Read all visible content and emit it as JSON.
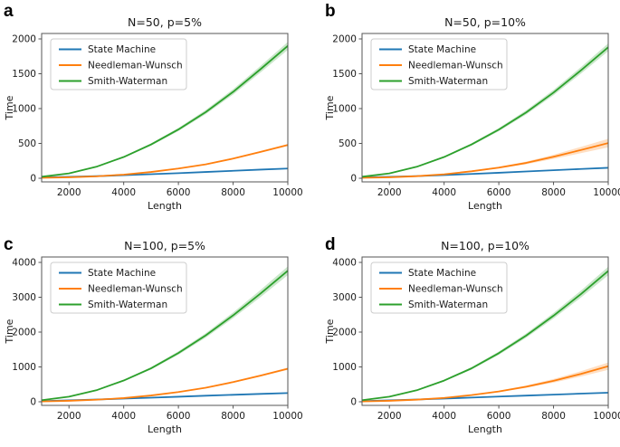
{
  "figure": {
    "background": "#ffffff",
    "ylabel": "Time",
    "xlabel": "Length",
    "legend_labels": [
      "State Machine",
      "Needleman-Wunsch",
      "Smith-Waterman"
    ]
  },
  "colors": {
    "state_machine": "#1f77b4",
    "needleman_wunsch": "#ff7f0e",
    "smith_waterman": "#2ca02c",
    "axis": "#555555",
    "text": "#1a1a1a",
    "legend_border": "#cccccc"
  },
  "chart_data": [
    {
      "type": "line",
      "letter": "a",
      "title": "N=50, p=5%",
      "xlabel": "Length",
      "ylabel": "Time",
      "x": [
        1000,
        2000,
        3000,
        4000,
        5000,
        6000,
        7000,
        8000,
        9000,
        10000
      ],
      "xlim": [
        1000,
        10000
      ],
      "ylim": [
        -52,
        2078
      ],
      "xticks": [
        2000,
        4000,
        6000,
        8000,
        10000
      ],
      "yticks": [
        0,
        500,
        1000,
        1500,
        2000
      ],
      "grid": false,
      "legend_position": "upper left",
      "series": [
        {
          "name": "State Machine",
          "color_key": "state_machine",
          "values": [
            12,
            20,
            30,
            44,
            58,
            73,
            90,
            107,
            124,
            140
          ],
          "band": [
            2,
            2,
            3,
            3,
            4,
            4,
            5,
            5,
            6,
            6
          ]
        },
        {
          "name": "Needleman-Wunsch",
          "color_key": "needleman_wunsch",
          "values": [
            6,
            14,
            28,
            52,
            90,
            140,
            200,
            282,
            378,
            478
          ],
          "band": [
            2,
            2,
            3,
            4,
            5,
            6,
            8,
            10,
            12,
            15
          ]
        },
        {
          "name": "Smith-Waterman",
          "color_key": "smith_waterman",
          "values": [
            22,
            70,
            165,
            305,
            485,
            700,
            950,
            1240,
            1565,
            1900
          ],
          "band": [
            3,
            5,
            8,
            12,
            17,
            23,
            30,
            38,
            47,
            57
          ]
        }
      ]
    },
    {
      "type": "line",
      "letter": "b",
      "title": "N=50, p=10%",
      "xlabel": "Length",
      "ylabel": "Time",
      "x": [
        1000,
        2000,
        3000,
        4000,
        5000,
        6000,
        7000,
        8000,
        9000,
        10000
      ],
      "xlim": [
        1000,
        10000
      ],
      "ylim": [
        -52,
        2078
      ],
      "xticks": [
        2000,
        4000,
        6000,
        8000,
        10000
      ],
      "yticks": [
        0,
        500,
        1000,
        1500,
        2000
      ],
      "grid": false,
      "legend_position": "upper left",
      "series": [
        {
          "name": "State Machine",
          "color_key": "state_machine",
          "values": [
            12,
            20,
            31,
            46,
            62,
            79,
            97,
            115,
            133,
            150
          ],
          "band": [
            2,
            3,
            3,
            4,
            4,
            5,
            6,
            7,
            8,
            9
          ]
        },
        {
          "name": "Needleman-Wunsch",
          "color_key": "needleman_wunsch",
          "values": [
            6,
            14,
            30,
            57,
            100,
            152,
            220,
            308,
            405,
            505
          ],
          "band": [
            2,
            3,
            4,
            6,
            9,
            13,
            19,
            30,
            45,
            62
          ]
        },
        {
          "name": "Smith-Waterman",
          "color_key": "smith_waterman",
          "values": [
            22,
            70,
            165,
            305,
            485,
            698,
            945,
            1230,
            1548,
            1880
          ],
          "band": [
            3,
            5,
            8,
            12,
            17,
            23,
            30,
            38,
            46,
            56
          ]
        }
      ]
    },
    {
      "type": "line",
      "letter": "c",
      "title": "N=100, p=5%",
      "xlabel": "Length",
      "ylabel": "Time",
      "x": [
        1000,
        2000,
        3000,
        4000,
        5000,
        6000,
        7000,
        8000,
        9000,
        10000
      ],
      "xlim": [
        1000,
        10000
      ],
      "ylim": [
        -104,
        4156
      ],
      "xticks": [
        2000,
        4000,
        6000,
        8000,
        10000
      ],
      "yticks": [
        0,
        1000,
        2000,
        3000,
        4000
      ],
      "grid": false,
      "legend_position": "upper left",
      "series": [
        {
          "name": "State Machine",
          "color_key": "state_machine",
          "values": [
            20,
            40,
            64,
            90,
            117,
            145,
            173,
            200,
            226,
            250
          ],
          "band": [
            3,
            3,
            4,
            4,
            5,
            5,
            6,
            6,
            7,
            8
          ]
        },
        {
          "name": "Needleman-Wunsch",
          "color_key": "needleman_wunsch",
          "values": [
            10,
            28,
            58,
            105,
            180,
            278,
            403,
            565,
            750,
            948
          ],
          "band": [
            3,
            4,
            5,
            7,
            9,
            12,
            16,
            21,
            27,
            34
          ]
        },
        {
          "name": "Smith-Waterman",
          "color_key": "smith_waterman",
          "values": [
            45,
            145,
            330,
            610,
            960,
            1400,
            1905,
            2480,
            3105,
            3760
          ],
          "band": [
            5,
            9,
            15,
            24,
            35,
            48,
            64,
            82,
            102,
            125
          ]
        }
      ]
    },
    {
      "type": "line",
      "letter": "d",
      "title": "N=100, p=10%",
      "xlabel": "Length",
      "ylabel": "Time",
      "x": [
        1000,
        2000,
        3000,
        4000,
        5000,
        6000,
        7000,
        8000,
        9000,
        10000
      ],
      "xlim": [
        1000,
        10000
      ],
      "ylim": [
        -104,
        4156
      ],
      "xticks": [
        2000,
        4000,
        6000,
        8000,
        10000
      ],
      "yticks": [
        0,
        1000,
        2000,
        3000,
        4000
      ],
      "grid": false,
      "legend_position": "upper left",
      "series": [
        {
          "name": "State Machine",
          "color_key": "state_machine",
          "values": [
            20,
            40,
            65,
            92,
            120,
            149,
            177,
            205,
            233,
            260
          ],
          "band": [
            3,
            4,
            4,
            5,
            5,
            6,
            7,
            7,
            8,
            9
          ]
        },
        {
          "name": "Needleman-Wunsch",
          "color_key": "needleman_wunsch",
          "values": [
            10,
            28,
            60,
            110,
            192,
            296,
            432,
            600,
            800,
            1020
          ],
          "band": [
            3,
            4,
            6,
            9,
            14,
            22,
            34,
            52,
            76,
            105
          ]
        },
        {
          "name": "Smith-Waterman",
          "color_key": "smith_waterman",
          "values": [
            45,
            145,
            330,
            608,
            958,
            1395,
            1900,
            2470,
            3090,
            3755
          ],
          "band": [
            5,
            9,
            15,
            24,
            35,
            47,
            62,
            80,
            100,
            122
          ]
        }
      ]
    }
  ]
}
